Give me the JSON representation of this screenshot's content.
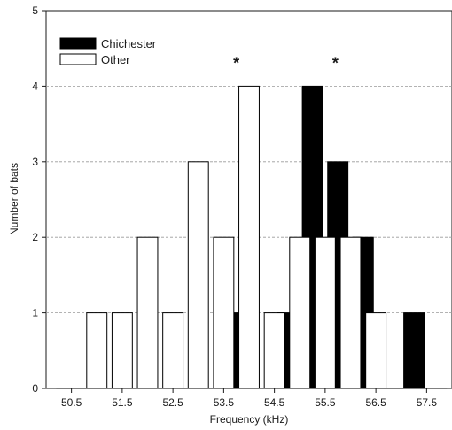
{
  "chart_data": {
    "type": "bar",
    "xlabel": "Frequency (kHz)",
    "ylabel": "Number of bats",
    "xlim": [
      50.0,
      58.0
    ],
    "ylim": [
      0,
      5
    ],
    "x_ticks": [
      50.5,
      51.5,
      52.5,
      53.5,
      54.5,
      55.5,
      56.5,
      57.5
    ],
    "x_tick_labels": [
      "50.5",
      "51.5",
      "52.5",
      "53.5",
      "54.5",
      "55.5",
      "56.5",
      "57.5"
    ],
    "y_ticks": [
      0,
      1,
      2,
      3,
      4,
      5
    ],
    "y_tick_labels": [
      "0",
      "1",
      "2",
      "3",
      "4",
      "5"
    ],
    "grid": "horizontal-dashed",
    "legend_position": "top-left",
    "series": [
      {
        "name": "Chichester",
        "color": "#000000",
        "fill": "solid",
        "x": [
          53.75,
          54.75,
          55.25,
          55.75,
          56.25,
          57.25
        ],
        "values": [
          1,
          1,
          4,
          3,
          2,
          1
        ]
      },
      {
        "name": "Other",
        "color": "#ffffff",
        "fill": "hollow",
        "x": [
          51.0,
          51.5,
          52.0,
          52.5,
          53.0,
          53.5,
          54.0,
          54.5,
          55.0,
          55.5,
          56.0,
          56.5
        ],
        "values": [
          1,
          1,
          2,
          1,
          3,
          2,
          4,
          1,
          2,
          2,
          2,
          1
        ]
      }
    ],
    "annotations": [
      {
        "text": "*",
        "x": 53.75,
        "y": 4.35
      },
      {
        "text": "*",
        "x": 55.7,
        "y": 4.35
      }
    ]
  }
}
